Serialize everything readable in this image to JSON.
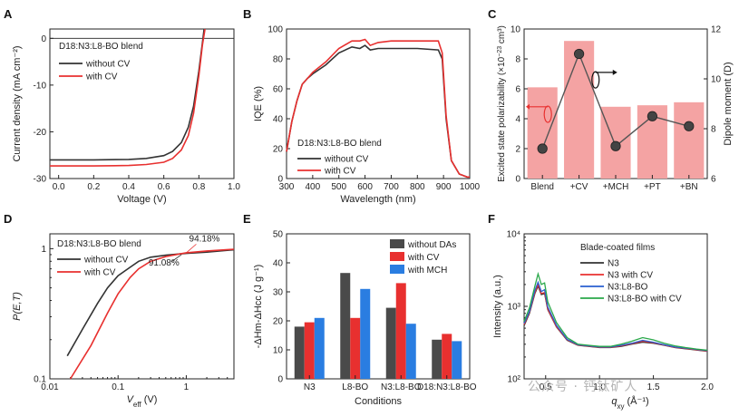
{
  "panels": {
    "A": {
      "letter": "A",
      "xlabel": "Voltage (V)",
      "legend_title": "D18:N3:L8-BO blend"
    },
    "B": {
      "letter": "B",
      "xlabel": "Wavelength (nm)",
      "ylabel": "IQE (%)",
      "legend_title": "D18:N3:L8-BO blend"
    },
    "C": {
      "letter": "C",
      "ylabel_left_prefix": "Excited state polarizability (×10",
      "ylabel_left_sup": "−23",
      "ylabel_left_suffix": " cm³)",
      "ylabel_right": "Dipole moment (D)"
    },
    "D": {
      "letter": "D",
      "legend_title": "D18:N3:L8-BO blend",
      "ann1": "94.18%",
      "ann2": "91.08%"
    },
    "E": {
      "letter": "E",
      "xlabel": "Conditions"
    },
    "F": {
      "letter": "F",
      "legend_title": "Blade-coated films",
      "xlabel_sub": "xy",
      "xlabel_unit": " (Å⁻¹)"
    }
  },
  "watermark": "公众号 · 钙钛矿人",
  "chart_data": [
    {
      "id": "A",
      "type": "line",
      "xlabel": "Voltage (V)",
      "ylabel": "Current density (mA cm⁻²)",
      "xlim": [
        -0.05,
        1.0
      ],
      "ylim": [
        -30,
        2
      ],
      "xticks": [
        "0.0",
        "0.2",
        "0.4",
        "0.6",
        "0.8",
        "1.0"
      ],
      "yticks": [
        "0",
        "-10",
        "-20",
        "-30"
      ],
      "series": [
        {
          "name": "without CV",
          "color": "#333333",
          "x": [
            -0.05,
            0.2,
            0.4,
            0.5,
            0.6,
            0.65,
            0.7,
            0.74,
            0.77,
            0.8,
            0.82,
            0.83
          ],
          "y": [
            -26.0,
            -26.0,
            -25.9,
            -25.7,
            -25.1,
            -24.2,
            -22.3,
            -19.0,
            -14.5,
            -7.0,
            -1.0,
            2.0
          ]
        },
        {
          "name": "with CV",
          "color": "#e8302f",
          "x": [
            -0.05,
            0.2,
            0.4,
            0.5,
            0.6,
            0.65,
            0.7,
            0.74,
            0.77,
            0.8,
            0.82,
            0.835
          ],
          "y": [
            -27.3,
            -27.3,
            -27.2,
            -27.0,
            -26.5,
            -25.7,
            -23.9,
            -20.8,
            -16.0,
            -8.0,
            -1.5,
            2.0
          ]
        }
      ]
    },
    {
      "id": "B",
      "type": "line",
      "xlabel": "Wavelength (nm)",
      "ylabel": "IQE (%)",
      "xlim": [
        300,
        1000
      ],
      "ylim": [
        0,
        100
      ],
      "xticks": [
        "300",
        "400",
        "500",
        "600",
        "700",
        "800",
        "900",
        "1000"
      ],
      "yticks": [
        "0",
        "20",
        "40",
        "60",
        "80",
        "100"
      ],
      "series": [
        {
          "name": "without CV",
          "color": "#333333",
          "x": [
            300,
            320,
            340,
            360,
            380,
            400,
            450,
            500,
            550,
            580,
            600,
            620,
            650,
            700,
            800,
            880,
            895,
            910,
            930,
            960,
            990,
            1000
          ],
          "y": [
            18,
            38,
            52,
            63,
            67,
            70,
            76,
            84,
            88,
            87,
            89,
            86,
            87,
            87,
            87,
            86,
            80,
            40,
            12,
            3,
            1,
            1
          ]
        },
        {
          "name": "with CV",
          "color": "#e8302f",
          "x": [
            300,
            320,
            340,
            360,
            380,
            400,
            450,
            500,
            550,
            580,
            600,
            620,
            650,
            700,
            800,
            880,
            895,
            910,
            930,
            960,
            990,
            1000
          ],
          "y": [
            18,
            38,
            52,
            63,
            67,
            71,
            78,
            87,
            92,
            92,
            93,
            89,
            91,
            92,
            92,
            92,
            84,
            42,
            12,
            3,
            1,
            1
          ]
        }
      ]
    },
    {
      "id": "C",
      "type": "bar",
      "categories": [
        "Blend",
        "+CV",
        "+MCH",
        "+PT",
        "+BN"
      ],
      "ylabel": "Excited state polarizability (×10⁻²³ cm³)",
      "ylabel_right": "Dipole moment (D)",
      "ylim": [
        0,
        10
      ],
      "y2lim": [
        6,
        12
      ],
      "yticks": [
        "0",
        "2",
        "4",
        "6",
        "8",
        "10"
      ],
      "y2ticks": [
        "6",
        "8",
        "10",
        "12"
      ],
      "bar_values": [
        6.1,
        9.2,
        4.8,
        4.9,
        5.1
      ],
      "dipole_values": [
        7.2,
        11.0,
        7.3,
        8.5,
        8.1
      ],
      "bar_color": "#f4a3a3",
      "point_color": "#444444"
    },
    {
      "id": "D",
      "type": "line",
      "xlabel": "V_eff (V)",
      "ylabel": "P(E,T)",
      "xscale": "log",
      "yscale": "log",
      "xlim": [
        0.01,
        5
      ],
      "ylim": [
        0.1,
        1.3
      ],
      "xticks": [
        "0.01",
        "0.1",
        "1"
      ],
      "yticks": [
        "0.1",
        "1"
      ],
      "series": [
        {
          "name": "without CV",
          "color": "#333333",
          "x": [
            0.018,
            0.03,
            0.05,
            0.07,
            0.1,
            0.15,
            0.2,
            0.3,
            0.5,
            0.8,
            1.0,
            2,
            5
          ],
          "y": [
            0.15,
            0.24,
            0.38,
            0.5,
            0.62,
            0.72,
            0.8,
            0.86,
            0.89,
            0.91,
            0.92,
            0.94,
            0.98
          ]
        },
        {
          "name": "with CV",
          "color": "#e8302f",
          "x": [
            0.02,
            0.04,
            0.07,
            0.1,
            0.15,
            0.2,
            0.3,
            0.5,
            0.8,
            1.0,
            2,
            5
          ],
          "y": [
            0.1,
            0.18,
            0.32,
            0.45,
            0.6,
            0.7,
            0.8,
            0.87,
            0.91,
            0.93,
            0.96,
            0.99
          ]
        }
      ]
    },
    {
      "id": "E",
      "type": "bar",
      "xlabel": "Conditions",
      "ylabel": "-ΔHm-ΔHcc (J g⁻¹)",
      "categories": [
        "N3",
        "L8-BO",
        "N3:L8-BO",
        "D18:N3:L8-BO"
      ],
      "ylim": [
        0,
        50
      ],
      "yticks": [
        "0",
        "10",
        "20",
        "30",
        "40",
        "50"
      ],
      "series": [
        {
          "name": "without DAs",
          "color": "#4a4a4a",
          "values": [
            18,
            36.5,
            24.5,
            13.5
          ]
        },
        {
          "name": "with CV",
          "color": "#e8302f",
          "values": [
            19.5,
            21,
            33,
            15.5
          ]
        },
        {
          "name": "with MCH",
          "color": "#2a7de1",
          "values": [
            21,
            31,
            19,
            13
          ]
        }
      ]
    },
    {
      "id": "F",
      "type": "line",
      "xlabel": "q_xy (Å⁻¹)",
      "ylabel": "Intensity (a.u.)",
      "yscale": "log",
      "xlim": [
        0.3,
        2.0
      ],
      "ylim": [
        100,
        10000
      ],
      "xticks": [
        "0.5",
        "1.0",
        "1.5",
        "2.0"
      ],
      "yticks": [
        "10²",
        "10³",
        "10⁴"
      ],
      "series": [
        {
          "name": "N3",
          "color": "#333333",
          "x": [
            0.3,
            0.35,
            0.4,
            0.43,
            0.46,
            0.49,
            0.52,
            0.6,
            0.7,
            0.8,
            0.9,
            1.0,
            1.1,
            1.2,
            1.3,
            1.4,
            1.5,
            1.6,
            1.7,
            1.8,
            1.9,
            2.0
          ],
          "y": [
            540,
            800,
            1500,
            1900,
            1450,
            1500,
            900,
            520,
            340,
            290,
            280,
            270,
            270,
            280,
            300,
            320,
            310,
            290,
            270,
            260,
            250,
            240
          ]
        },
        {
          "name": "N3 with CV",
          "color": "#e8302f",
          "x": [
            0.3,
            0.35,
            0.4,
            0.43,
            0.46,
            0.49,
            0.52,
            0.6,
            0.7,
            0.8,
            0.9,
            1.0,
            1.1,
            1.2,
            1.3,
            1.4,
            1.5,
            1.6,
            1.7,
            1.8,
            1.9,
            2.0
          ],
          "y": [
            560,
            830,
            1550,
            2000,
            1500,
            1550,
            920,
            530,
            345,
            292,
            282,
            272,
            272,
            285,
            305,
            330,
            315,
            292,
            272,
            262,
            252,
            242
          ]
        },
        {
          "name": "N3:L8-BO",
          "color": "#2a5fd0",
          "x": [
            0.3,
            0.35,
            0.4,
            0.43,
            0.46,
            0.49,
            0.52,
            0.6,
            0.7,
            0.8,
            0.9,
            1.0,
            1.1,
            1.2,
            1.3,
            1.4,
            1.5,
            1.6,
            1.7,
            1.8,
            1.9,
            2.0
          ],
          "y": [
            580,
            850,
            1650,
            2150,
            1600,
            1700,
            980,
            550,
            350,
            295,
            285,
            275,
            275,
            290,
            310,
            340,
            320,
            295,
            275,
            265,
            255,
            245
          ]
        },
        {
          "name": "N3:L8-BO with CV",
          "color": "#2aa84a",
          "x": [
            0.3,
            0.35,
            0.4,
            0.43,
            0.46,
            0.49,
            0.52,
            0.6,
            0.7,
            0.8,
            0.9,
            1.0,
            1.1,
            1.2,
            1.3,
            1.4,
            1.5,
            1.6,
            1.7,
            1.8,
            1.9,
            2.0
          ],
          "y": [
            620,
            950,
            1900,
            2800,
            2000,
            2100,
            1150,
            600,
            370,
            300,
            290,
            280,
            280,
            300,
            330,
            370,
            345,
            310,
            285,
            270,
            258,
            248
          ]
        }
      ]
    }
  ]
}
